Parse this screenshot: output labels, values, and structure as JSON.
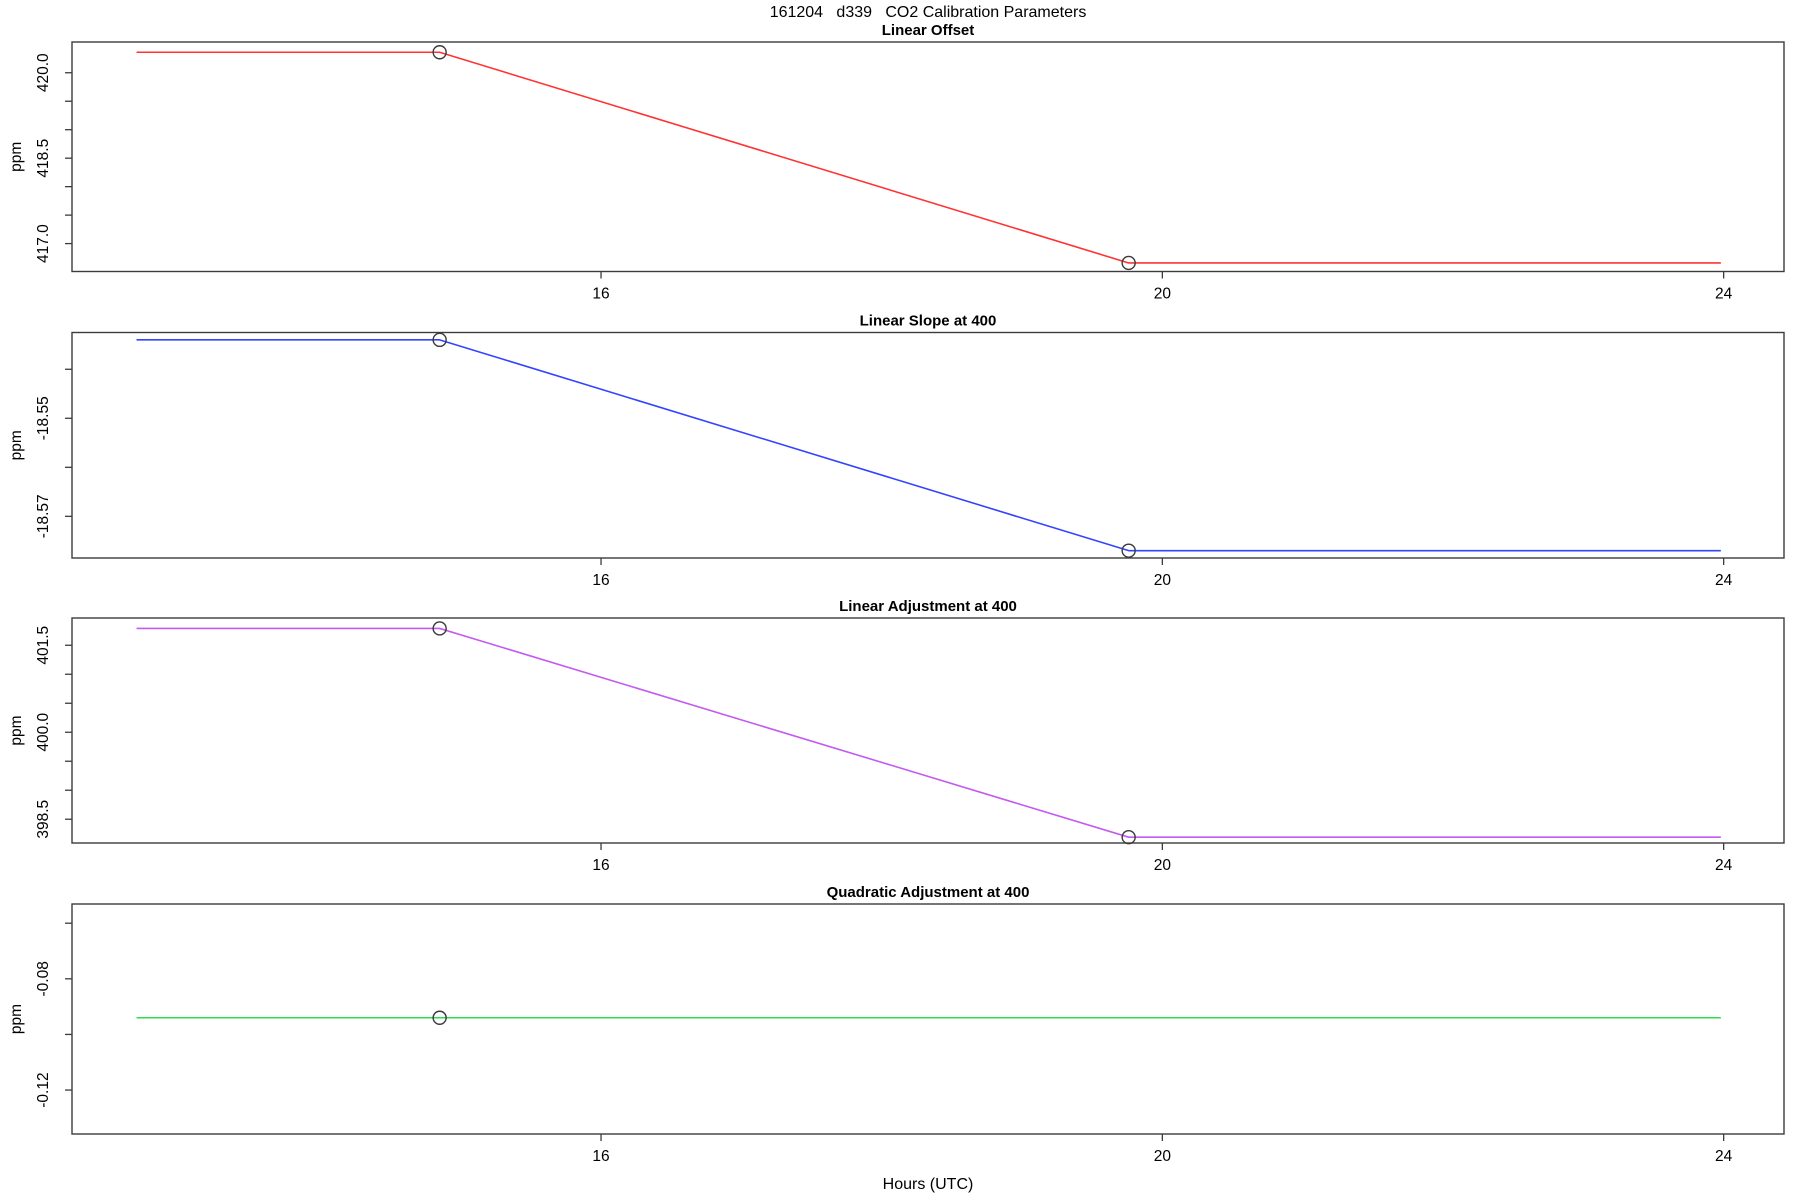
{
  "title": "161204   d339   CO2 Calibration Parameters",
  "xlabel": "Hours (UTC)",
  "x_axis": {
    "xlim": [
      12.23,
      24.43
    ],
    "ticks": [
      16,
      20,
      24
    ],
    "tick_labels": [
      "16",
      "20",
      "24"
    ]
  },
  "chart_data": [
    {
      "type": "line",
      "title": "Linear Offset",
      "ylabel": "ppm",
      "color": "#FF3333",
      "ylim": [
        416.51,
        420.54
      ],
      "yticks": [
        417.0,
        417.5,
        418.0,
        418.5,
        419.0,
        419.5,
        420.0
      ],
      "ytick_labels": [
        "417.0",
        "",
        "",
        "418.5",
        "",
        "",
        "420.0"
      ],
      "x": [
        12.69,
        14.85,
        19.76,
        23.98
      ],
      "y": [
        420.36,
        420.36,
        416.66,
        416.66
      ],
      "markers": [
        {
          "x": 14.85,
          "y": 420.36
        },
        {
          "x": 19.76,
          "y": 416.66
        }
      ]
    },
    {
      "type": "line",
      "title": "Linear Slope at 400",
      "ylabel": "ppm",
      "color": "#3344FF",
      "ylim": [
        -18.5785,
        -18.5325
      ],
      "yticks": [
        -18.57,
        -18.56,
        -18.55,
        -18.54
      ],
      "ytick_labels": [
        "-18.57",
        "",
        "-18.55",
        ""
      ],
      "x": [
        12.69,
        14.85,
        19.76,
        23.98
      ],
      "y": [
        -18.534,
        -18.534,
        -18.577,
        -18.577
      ],
      "markers": [
        {
          "x": 14.85,
          "y": -18.534
        },
        {
          "x": 19.76,
          "y": -18.577
        }
      ]
    },
    {
      "type": "line",
      "title": "Linear Adjustment at 400",
      "ylabel": "ppm",
      "color": "#C35BF0",
      "ylim": [
        398.09,
        401.97
      ],
      "yticks": [
        398.5,
        399.0,
        399.5,
        400.0,
        400.5,
        401.0,
        401.5
      ],
      "ytick_labels": [
        "398.5",
        "",
        "",
        "400.0",
        "",
        "",
        "401.5"
      ],
      "x": [
        12.69,
        14.85,
        19.76,
        23.98
      ],
      "y": [
        401.79,
        401.79,
        398.19,
        398.19
      ],
      "markers": [
        {
          "x": 14.85,
          "y": 401.79
        },
        {
          "x": 19.76,
          "y": 398.19
        }
      ]
    },
    {
      "type": "line",
      "title": "Quadratic Adjustment at 400",
      "ylabel": "ppm",
      "color": "#2ADF4C",
      "ylim": [
        -0.1358,
        -0.0531
      ],
      "yticks": [
        -0.12,
        -0.1,
        -0.08,
        -0.06
      ],
      "ytick_labels": [
        "-0.12",
        "",
        "-0.08",
        ""
      ],
      "x": [
        12.69,
        23.98
      ],
      "y": [
        -0.094,
        -0.094
      ],
      "markers": [
        {
          "x": 14.85,
          "y": -0.094
        }
      ]
    }
  ]
}
